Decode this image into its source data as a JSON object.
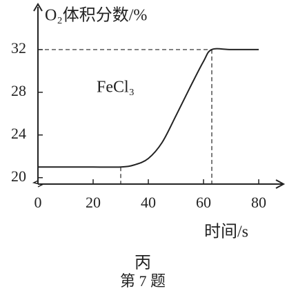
{
  "chart_data": {
    "type": "line",
    "y_label": "O₂体积分数/%",
    "x_label": "时间/s",
    "annotation": "FeCl₃",
    "subtitle": "丙",
    "caption": "第 7 题",
    "x": [
      0,
      10,
      20,
      30,
      35,
      40,
      45,
      50,
      55,
      60,
      63,
      70,
      80
    ],
    "series": [
      {
        "color": "#222222",
        "values": [
          21,
          21,
          21,
          21,
          21.2,
          21.8,
          23.3,
          25.8,
          28.4,
          30.9,
          32,
          32,
          32
        ]
      }
    ],
    "xlim": [
      0,
      88.75
    ],
    "xticks": [
      0,
      20,
      40,
      60,
      80
    ],
    "ylim": [
      19.4,
      36
    ],
    "yticks": [
      20,
      24,
      28,
      32
    ]
  }
}
